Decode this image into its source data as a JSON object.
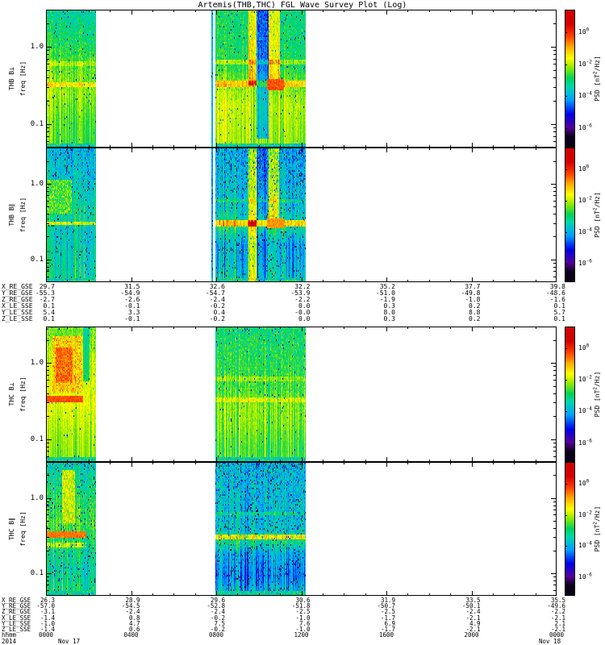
{
  "title": "Artemis(THB,THC) FGL Wave Survey Plot (Log)",
  "chart_data": {
    "type": "heatmap",
    "title": "Artemis(THB,THC) FGL Wave Survey Plot (Log)",
    "time_axis": {
      "row_label": "hhmm",
      "ticks": [
        "0000",
        "0400",
        "0800",
        "1200",
        "1600",
        "2000",
        "0000"
      ],
      "year": "2014",
      "date_start": "Nov 17",
      "date_end": "Nov 18",
      "hours_span": 24
    },
    "freq_axis": {
      "label": "freq [Hz]",
      "scale": "log",
      "tick_labels": [
        "1.0",
        "0.1"
      ],
      "tick_values": [
        1.0,
        0.1
      ],
      "range_hz": [
        0.05,
        3.0
      ],
      "minor_ticks": [
        3,
        2,
        0.9,
        0.8,
        0.7,
        0.6,
        0.5,
        0.4,
        0.3,
        0.2,
        0.09,
        0.08,
        0.07,
        0.06
      ]
    },
    "colorbar": {
      "label_prefix": "PSD [nT",
      "label_sup_char": "2",
      "label_suffix": "/Hz]",
      "tick_base": "10",
      "tick_exponents": [
        0,
        -2,
        -4,
        -6
      ],
      "v_top": 1.4,
      "v_bottom": -7.2
    },
    "data_intervals_hours": [
      [
        0.0,
        2.35
      ],
      [
        7.97,
        12.2
      ]
    ],
    "panels": [
      {
        "name": "thb-bperp",
        "label": "THB B⊥",
        "seed": 11,
        "speckle": 0.02,
        "chunks": [
          {
            "t": [
              0.0,
              2.35
            ],
            "amp": 0.85,
            "profile": [
              [
                0,
                -3.3
              ],
              [
                0.25,
                -2.8
              ],
              [
                0.45,
                -2.3
              ],
              [
                0.6,
                -2.1
              ],
              [
                0.8,
                -2.4
              ],
              [
                1,
                -2.5
              ]
            ]
          },
          {
            "t": [
              7.78,
              7.86
            ],
            "v_set": -3.8
          },
          {
            "t": [
              7.97,
              12.2
            ],
            "amp": 0.85,
            "profile": [
              [
                0,
                -3.0
              ],
              [
                0.4,
                -2.8
              ],
              [
                0.55,
                -2.2
              ],
              [
                0.7,
                -1.9
              ],
              [
                0.85,
                -2.0
              ],
              [
                1,
                -2.1
              ]
            ]
          }
        ],
        "features": [
          {
            "type": "hline",
            "f": 0.62,
            "band": 0.03,
            "t": [
              7.9,
              12.2
            ],
            "dv": 0.7
          },
          {
            "type": "hline",
            "f": 0.33,
            "band": 0.035,
            "t": [
              7.9,
              12.2
            ],
            "dv": 1.1
          },
          {
            "type": "hline",
            "f": 0.33,
            "band": 0.03,
            "t": [
              0,
              2.35
            ],
            "dv": 0.8
          },
          {
            "type": "hline",
            "f": 0.6,
            "band": 0.025,
            "t": [
              0,
              2.35
            ],
            "dv": 0.5
          },
          {
            "type": "vstripe",
            "t": [
              9.5,
              9.9
            ],
            "y": [
              0,
              0.55
            ],
            "dv": 1.4
          },
          {
            "type": "vstripe",
            "t": [
              9.9,
              10.45
            ],
            "y": [
              0,
              0.93
            ],
            "dv": -1.6
          },
          {
            "type": "vstripe",
            "t": [
              10.45,
              11.0
            ],
            "y": [
              0,
              0.5
            ],
            "dv": 1.3
          },
          {
            "type": "blob",
            "t": [
              10.4,
              11.2
            ],
            "f": [
              0.28,
              0.38
            ],
            "v": -0.35,
            "jitter": 0.3
          }
        ]
      },
      {
        "name": "thb-bpar",
        "label": "THB B∥",
        "seed": 22,
        "speckle": 0.05,
        "chunks": [
          {
            "t": [
              0.0,
              2.35
            ],
            "amp": 1.0,
            "profile": [
              [
                0,
                -3.9
              ],
              [
                0.3,
                -3.5
              ],
              [
                0.5,
                -3.1
              ],
              [
                0.62,
                -3.5
              ],
              [
                0.8,
                -3.3
              ],
              [
                1,
                -3.1
              ]
            ]
          },
          {
            "t": [
              7.78,
              7.86
            ],
            "v_set": -4.2
          },
          {
            "t": [
              7.97,
              12.2
            ],
            "amp": 1.15,
            "profile": [
              [
                0,
                -4.0
              ],
              [
                0.45,
                -3.6
              ],
              [
                0.58,
                -3.0
              ],
              [
                0.72,
                -3.9
              ],
              [
                0.88,
                -3.7
              ],
              [
                1,
                -3.4
              ]
            ]
          }
        ],
        "features": [
          {
            "type": "blob",
            "t": [
              0.0,
              1.2
            ],
            "f": [
              0.4,
              1.1
            ],
            "v": -2.5,
            "jitter": 0.8
          },
          {
            "type": "vstripe",
            "t": [
              9.5,
              9.9
            ],
            "y": [
              0,
              1
            ],
            "dv": 1.9
          },
          {
            "type": "vstripe",
            "t": [
              9.95,
              10.4
            ],
            "y": [
              0,
              1
            ],
            "dv": -0.7
          },
          {
            "type": "vstripe",
            "t": [
              10.45,
              10.95
            ],
            "y": [
              0,
              0.55
            ],
            "dv": 1.7
          },
          {
            "type": "hline",
            "f": 0.3,
            "band": 0.03,
            "t": [
              0,
              2.35
            ],
            "dv": 1.6
          },
          {
            "type": "hline",
            "f": 0.3,
            "band": 0.035,
            "t": [
              7.97,
              12.2
            ],
            "dv": 2.0,
            "vmin": -1.9
          },
          {
            "type": "hline",
            "f": 0.6,
            "band": 0.025,
            "t": [
              7.97,
              12.2
            ],
            "dv": 0.6
          },
          {
            "type": "blob",
            "t": [
              10.4,
              11.2
            ],
            "f": [
              0.26,
              0.34
            ],
            "v": -0.8,
            "jitter": 0.3
          }
        ]
      },
      {
        "name": "thc-bperp",
        "label": "THC B⊥",
        "seed": 33,
        "speckle": 0.015,
        "chunks": [
          {
            "t": [
              0.0,
              2.35
            ],
            "amp": 0.7,
            "profile": [
              [
                0,
                -2.4
              ],
              [
                0.3,
                -1.9
              ],
              [
                0.55,
                -1.7
              ],
              [
                0.8,
                -2.1
              ],
              [
                1,
                -2.3
              ]
            ]
          },
          {
            "t": [
              7.97,
              12.2
            ],
            "amp": 0.9,
            "profile": [
              [
                0,
                -3.0
              ],
              [
                0.45,
                -2.6
              ],
              [
                0.6,
                -2.2
              ],
              [
                0.75,
                -2.3
              ],
              [
                0.9,
                -2.6
              ],
              [
                1,
                -2.5
              ]
            ]
          }
        ],
        "features": [
          {
            "type": "blob",
            "t": [
              0.3,
              1.7
            ],
            "f": [
              0.4,
              2.2
            ],
            "v": -1.2,
            "jitter": 0.9
          },
          {
            "type": "blob",
            "t": [
              0.45,
              1.25
            ],
            "f": [
              0.55,
              1.6
            ],
            "v": -0.5,
            "jitter": 0.55
          },
          {
            "type": "vstripe",
            "t": [
              1.75,
              2.05
            ],
            "y": [
              0,
              0.4
            ],
            "dv": -1.0
          },
          {
            "type": "blob",
            "t": [
              0.0,
              1.75
            ],
            "f": [
              0.3,
              0.37
            ],
            "v": -0.3,
            "jitter": 0.25
          },
          {
            "type": "hline",
            "f": 0.33,
            "band": 0.03,
            "t": [
              7.97,
              12.2
            ],
            "dv": 0.6
          },
          {
            "type": "hline",
            "f": 0.62,
            "band": 0.025,
            "t": [
              7.97,
              12.2
            ],
            "dv": 0.5
          }
        ]
      },
      {
        "name": "thc-bpar",
        "label": "THC B∥",
        "seed": 44,
        "speckle": 0.06,
        "chunks": [
          {
            "t": [
              0.0,
              2.35
            ],
            "amp": 1.0,
            "profile": [
              [
                0,
                -3.5
              ],
              [
                0.25,
                -2.9
              ],
              [
                0.45,
                -2.5
              ],
              [
                0.6,
                -2.9
              ],
              [
                0.8,
                -3.3
              ],
              [
                1,
                -2.9
              ]
            ]
          },
          {
            "t": [
              7.97,
              12.2
            ],
            "amp": 1.25,
            "profile": [
              [
                0,
                -3.9
              ],
              [
                0.5,
                -3.7
              ],
              [
                0.6,
                -3.1
              ],
              [
                0.68,
                -4.0
              ],
              [
                0.85,
                -4.4
              ],
              [
                1,
                -3.7
              ]
            ]
          }
        ],
        "features": [
          {
            "type": "blob",
            "t": [
              0.75,
              1.35
            ],
            "f": [
              0.45,
              2.3
            ],
            "v": -1.8,
            "jitter": 0.8
          },
          {
            "type": "blob",
            "t": [
              0.05,
              1.9
            ],
            "f": [
              0.29,
              0.36
            ],
            "v": -0.55,
            "jitter": 0.3
          },
          {
            "type": "hline",
            "f": 0.24,
            "band": 0.03,
            "t": [
              0,
              1.9
            ],
            "dv": 1.0
          },
          {
            "type": "hline",
            "f": 0.3,
            "band": 0.035,
            "t": [
              7.97,
              12.2
            ],
            "dv": 1.8
          },
          {
            "type": "hline",
            "f": 0.62,
            "band": 0.025,
            "t": [
              7.97,
              12.2
            ],
            "dv": 0.5
          }
        ]
      }
    ],
    "ephemeris_top": {
      "rows": [
        {
          "label": "X_RE_GSE",
          "values": [
            "29.7",
            "31.5",
            "32.6",
            "32.2",
            "35.2",
            "37.7",
            "39.8"
          ]
        },
        {
          "label": "Y_RE_GSE",
          "values": [
            "-55.3",
            "-54.9",
            "-54.7",
            "-53.9",
            "-51.0",
            "-49.8",
            "-48.6"
          ]
        },
        {
          "label": "Z_RE_GSE",
          "values": [
            "-2.7",
            "-2.6",
            "-2.4",
            "-2.2",
            "-1.9",
            "-1.8",
            "-1.6"
          ]
        },
        {
          "label": "X_LE_SSE",
          "values": [
            "0.1",
            "-0.1",
            "-0.2",
            "0.0",
            "0.3",
            "0.2",
            "0.1"
          ]
        },
        {
          "label": "Y_LE_SSE",
          "values": [
            "5.4",
            "3.3",
            "0.4",
            "-0.0",
            "8.0",
            "8.8",
            "5.7"
          ]
        },
        {
          "label": "Z_LE_SSE",
          "values": [
            "0.1",
            "-0.1",
            "-0.2",
            "0.0",
            "0.3",
            "0.2",
            "0.1"
          ]
        }
      ]
    },
    "ephemeris_bottom": {
      "rows": [
        {
          "label": "X_RE_GSE",
          "values": [
            "26.3",
            "28.9",
            "29.6",
            "30.6",
            "31.9",
            "33.5",
            "35.5"
          ]
        },
        {
          "label": "Y_RE_GSE",
          "values": [
            "-57.0",
            "-54.5",
            "-52.8",
            "-51.8",
            "-50.7",
            "-50.1",
            "-49.6"
          ]
        },
        {
          "label": "Z_RE_GSE",
          "values": [
            "-3.1",
            "-2.4",
            "-2.4",
            "-2.5",
            "-2.5",
            "-2.4",
            "-2.2"
          ]
        },
        {
          "label": "X_LE_SSE",
          "values": [
            "-1.4",
            "0.8",
            "-0.2",
            "-1.0",
            "-1.7",
            "-2.1",
            "-2.1"
          ]
        },
        {
          "label": "Y_LE_SSE",
          "values": [
            "-1.0",
            "4.7",
            "7.5",
            "7.6",
            "6.9",
            "4.9",
            "2.1"
          ]
        },
        {
          "label": "Z_LE_SSE",
          "values": [
            "-1.4",
            "0.6",
            "-0.2",
            "-1.0",
            "-1.7",
            "-2.1",
            "-2.1"
          ]
        }
      ]
    }
  }
}
